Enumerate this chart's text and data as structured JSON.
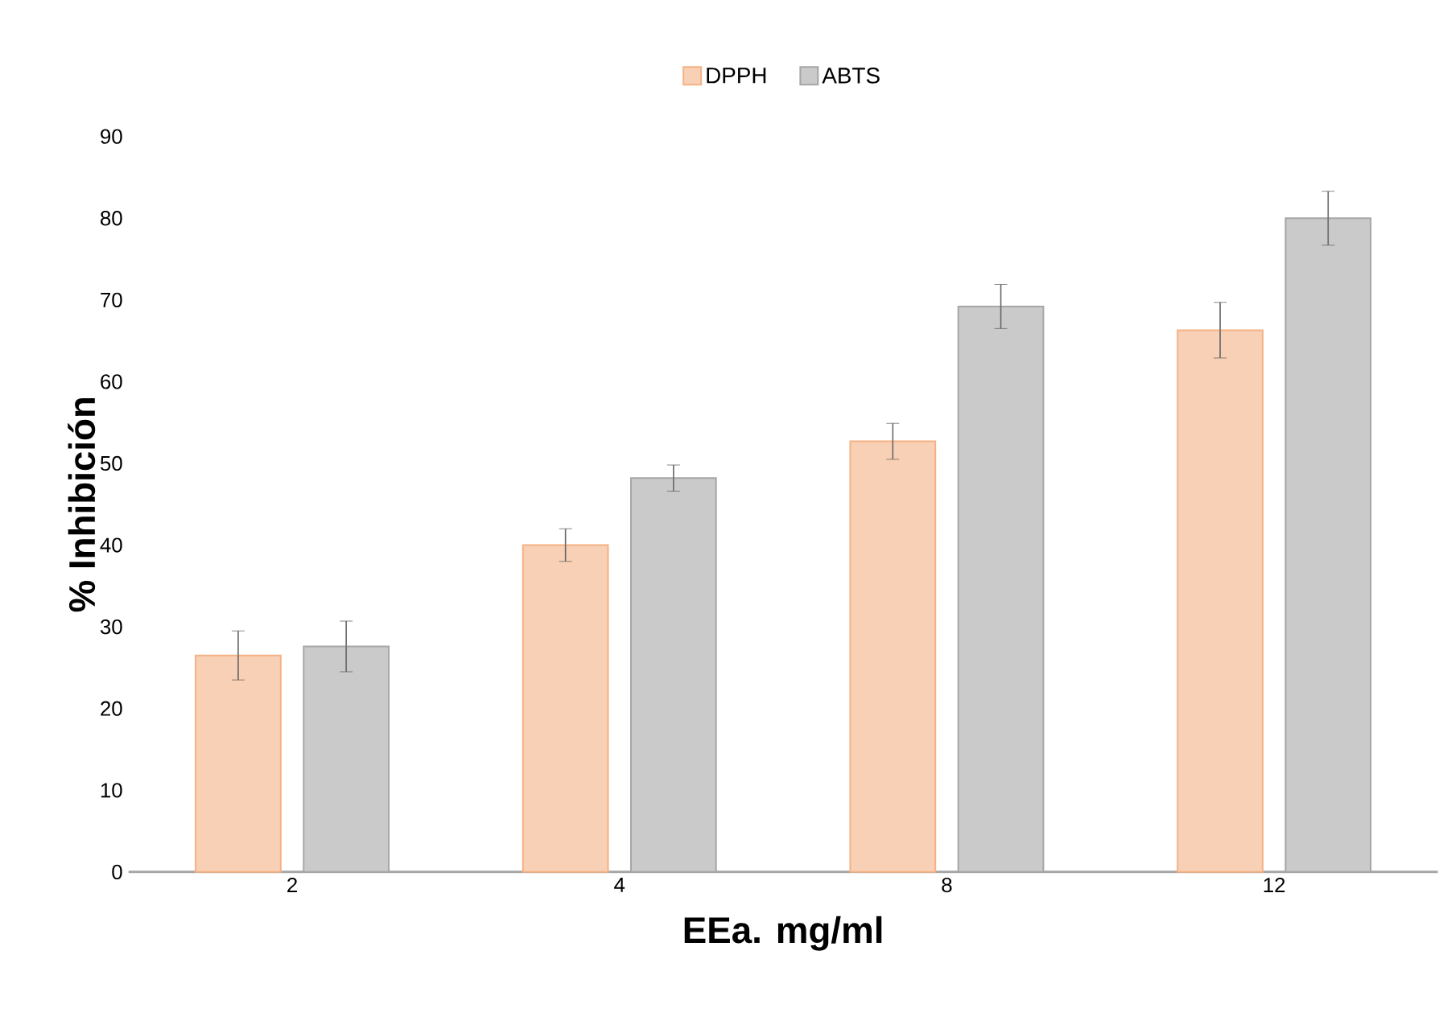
{
  "chart_data": {
    "type": "bar",
    "xlabel": "EEa. mg/ml",
    "ylabel": "% Inhibición",
    "categories": [
      "2",
      "4",
      "8",
      "12"
    ],
    "series": [
      {
        "name": "DPPH",
        "color": "#f4b183",
        "values": [
          26.5,
          40.0,
          52.7,
          66.3
        ],
        "errors": [
          3.0,
          2.0,
          2.2,
          3.4
        ]
      },
      {
        "name": "ABTS",
        "color": "#a6a6a6",
        "values": [
          27.6,
          48.2,
          69.2,
          80.0
        ],
        "errors": [
          3.1,
          1.6,
          2.7,
          3.3
        ]
      }
    ],
    "ylim": [
      0,
      90
    ],
    "yticks": [
      0,
      10,
      20,
      30,
      40,
      50,
      60,
      70,
      80,
      90
    ],
    "grid": false,
    "legend": "top"
  }
}
